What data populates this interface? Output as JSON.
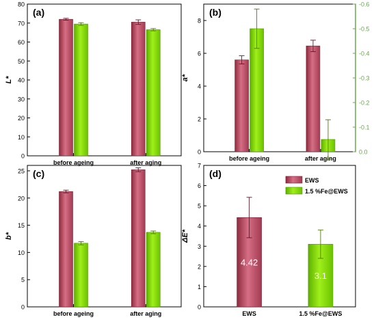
{
  "colors": {
    "EWS": "#c04f66",
    "Fe": "#7fd600",
    "axis": "#000000",
    "green_axis": "#6aa84f"
  },
  "chart_data": [
    {
      "panel": "(a)",
      "type": "bar",
      "ylabel": "L*",
      "categories": [
        "before ageing",
        "after aging"
      ],
      "ylim": [
        0,
        80
      ],
      "yticks": [
        0,
        10,
        20,
        30,
        40,
        50,
        60,
        70,
        80
      ],
      "series": [
        {
          "key": "EWS",
          "values": [
            72,
            70.5
          ],
          "errors": [
            0.5,
            1.2
          ]
        },
        {
          "key": "Fe",
          "values": [
            69.5,
            66.5
          ],
          "errors": [
            0.7,
            0.6
          ]
        }
      ]
    },
    {
      "panel": "(b)",
      "type": "bar",
      "ylabel": "a*",
      "categories": [
        "before ageing",
        "after aging"
      ],
      "ylim": [
        0,
        9
      ],
      "yticks": [
        0,
        2,
        4,
        6,
        8
      ],
      "y2lim": [
        0,
        -0.6
      ],
      "y2ticks": [
        "0.0",
        "-0.1",
        "-0.2",
        "-0.3",
        "-0.4",
        "-0.5",
        "-0.6"
      ],
      "series": [
        {
          "key": "EWS",
          "axis": "left",
          "values": [
            5.6,
            6.45
          ],
          "errors": [
            0.25,
            0.35
          ]
        },
        {
          "key": "Fe",
          "axis": "right",
          "values": [
            -0.5,
            -0.05
          ],
          "errors": [
            0.08,
            0.08
          ]
        }
      ]
    },
    {
      "panel": "(c)",
      "type": "bar",
      "ylabel": "b*",
      "categories": [
        "before ageing",
        "after aging"
      ],
      "ylim": [
        0,
        26
      ],
      "yticks": [
        0,
        5,
        10,
        15,
        20,
        25
      ],
      "series": [
        {
          "key": "EWS",
          "values": [
            21.2,
            25.2
          ],
          "errors": [
            0.25,
            0.35
          ]
        },
        {
          "key": "Fe",
          "values": [
            11.7,
            13.7
          ],
          "errors": [
            0.3,
            0.25
          ]
        }
      ]
    },
    {
      "panel": "(d)",
      "type": "bar",
      "ylabel": "ΔE*",
      "categories": [
        "EWS",
        "1.5 %Fe@EWS"
      ],
      "ylim": [
        0,
        7
      ],
      "yticks": [
        0,
        1,
        2,
        3,
        4,
        5,
        6,
        7
      ],
      "values": [
        4.42,
        3.1
      ],
      "value_labels": [
        "4.42",
        "3.1"
      ],
      "errors": [
        1.0,
        0.7
      ],
      "colors": [
        "EWS",
        "Fe"
      ],
      "legend": [
        {
          "key": "EWS",
          "name": "EWS"
        },
        {
          "key": "Fe",
          "name": "1.5 %Fe@EWS"
        }
      ]
    }
  ]
}
